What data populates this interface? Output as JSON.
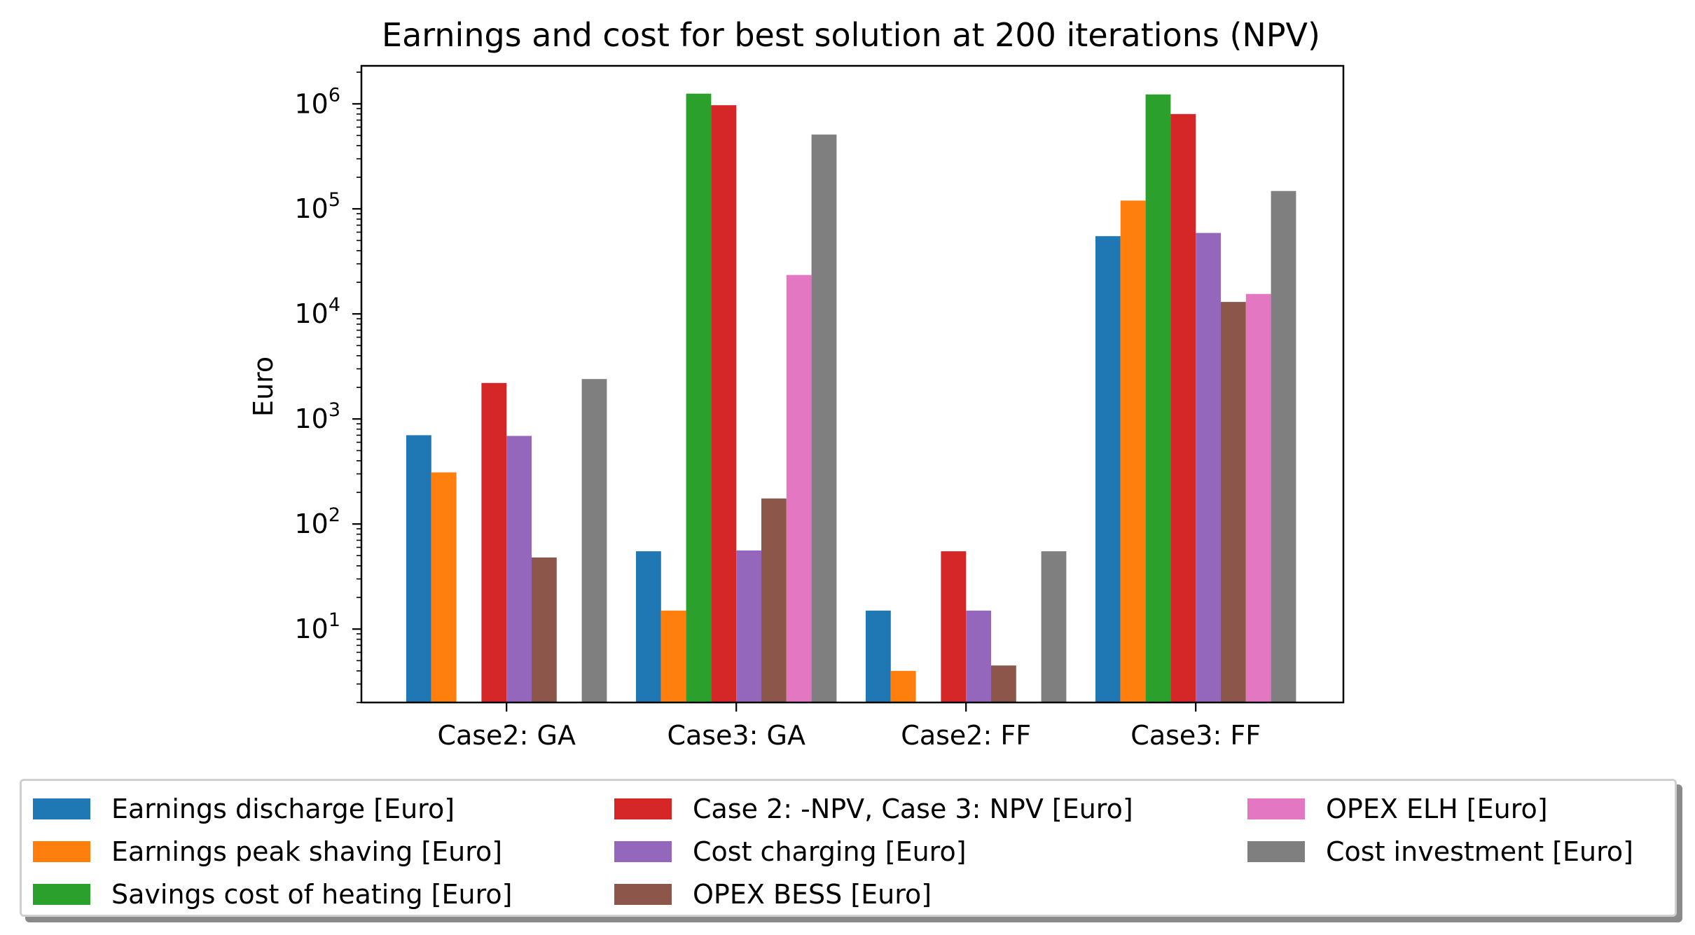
{
  "chart_data": {
    "type": "bar",
    "title": "Earnings and cost for best solution at 200 iterations (NPV)",
    "xlabel": "",
    "ylabel": "Euro",
    "yscale": "log",
    "ylim": [
      2,
      2300000
    ],
    "yticks": [
      {
        "value": 10,
        "base": "10",
        "exp": "1"
      },
      {
        "value": 100,
        "base": "10",
        "exp": "2"
      },
      {
        "value": 1000,
        "base": "10",
        "exp": "3"
      },
      {
        "value": 10000,
        "base": "10",
        "exp": "4"
      },
      {
        "value": 100000,
        "base": "10",
        "exp": "5"
      },
      {
        "value": 1000000,
        "base": "10",
        "exp": "6"
      }
    ],
    "categories": [
      "Case2: GA",
      "Case3: GA",
      "Case2: FF",
      "Case3: FF"
    ],
    "series": [
      {
        "name": "Earnings discharge [Euro]",
        "color": "#1f77b4",
        "values": [
          700,
          55,
          15,
          55000
        ]
      },
      {
        "name": "Earnings peak shaving [Euro]",
        "color": "#ff7f0e",
        "values": [
          310,
          15,
          4,
          120000
        ]
      },
      {
        "name": "Savings cost of heating [Euro]",
        "color": "#2ca02c",
        "values": [
          null,
          1250000,
          null,
          1230000
        ]
      },
      {
        "name": "Case 2: -NPV, Case 3: NPV  [Euro]",
        "color": "#d62728",
        "values": [
          2200,
          970000,
          55,
          800000
        ]
      },
      {
        "name": "Cost charging [Euro]",
        "color": "#9467bd",
        "values": [
          690,
          56,
          15,
          59000
        ]
      },
      {
        "name": "OPEX BESS [Euro]",
        "color": "#8c564b",
        "values": [
          48,
          175,
          4.5,
          13000
        ]
      },
      {
        "name": "OPEX ELH [Euro]",
        "color": "#e377c2",
        "values": [
          null,
          23500,
          null,
          15500
        ]
      },
      {
        "name": "Cost investment [Euro]",
        "color": "#7f7f7f",
        "values": [
          2400,
          510000,
          55,
          148000
        ]
      }
    ],
    "grid": false,
    "legend_placement": "below chart, 3 columns"
  }
}
